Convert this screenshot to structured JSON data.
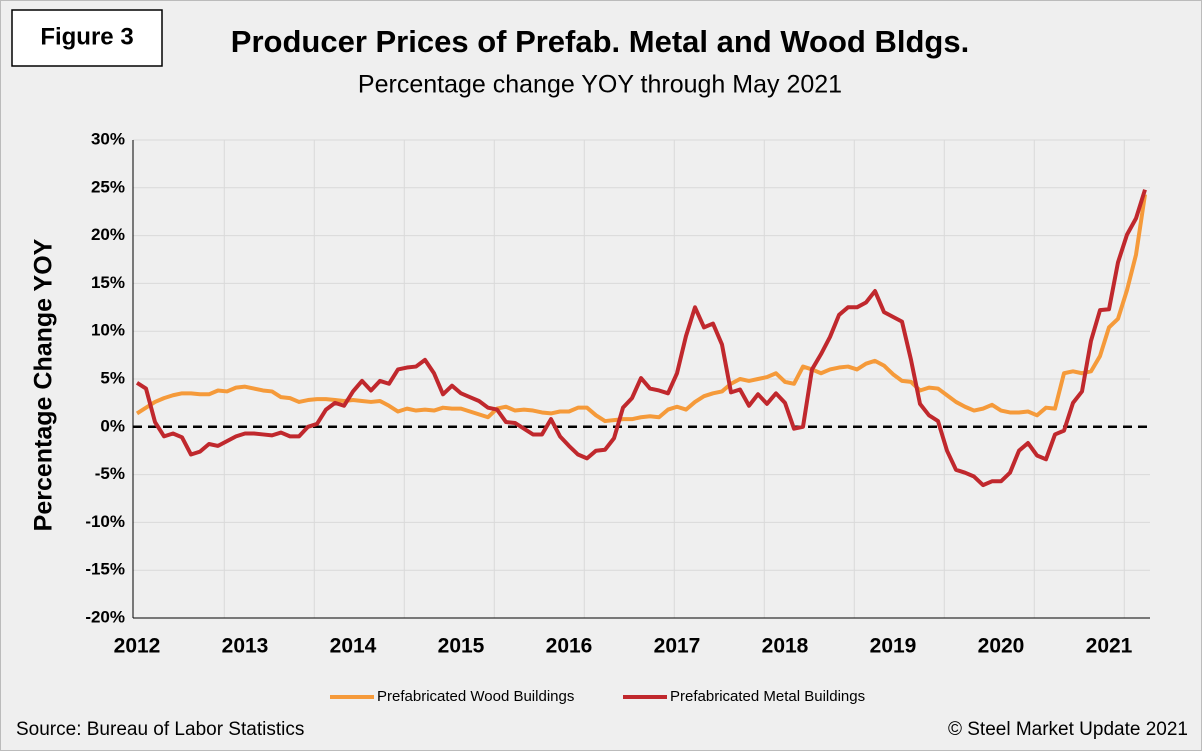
{
  "chart_data": {
    "type": "line",
    "figure_label": "Figure 3",
    "title": "Producer Prices of Prefab. Metal and Wood Bldgs.",
    "subtitle": "Percentage change YOY through May 2021",
    "ylabel": "Percentage Change YOY",
    "source": "Source: Bureau of Labor Statistics",
    "credit": "© Steel Market Update 2021",
    "categories": [
      "2012",
      null,
      null,
      null,
      null,
      null,
      null,
      null,
      null,
      null,
      null,
      null,
      "2013",
      null,
      null,
      null,
      null,
      null,
      null,
      null,
      null,
      null,
      null,
      null,
      "2014",
      null,
      null,
      null,
      null,
      null,
      null,
      null,
      null,
      null,
      null,
      null,
      "2015",
      null,
      null,
      null,
      null,
      null,
      null,
      null,
      null,
      null,
      null,
      null,
      "2016",
      null,
      null,
      null,
      null,
      null,
      null,
      null,
      null,
      null,
      null,
      null,
      "2017",
      null,
      null,
      null,
      null,
      null,
      null,
      null,
      null,
      null,
      null,
      null,
      "2018",
      null,
      null,
      null,
      null,
      null,
      null,
      null,
      null,
      null,
      null,
      null,
      "2019",
      null,
      null,
      null,
      null,
      null,
      null,
      null,
      null,
      null,
      null,
      null,
      "2020",
      null,
      null,
      null,
      null,
      null,
      null,
      null,
      null,
      null,
      null,
      null,
      "2021",
      null,
      null,
      null,
      null
    ],
    "series": [
      {
        "name": "Prefabricated Wood Buildings",
        "color": "#f59a3a",
        "values": [
          1.4,
          2.0,
          2.6,
          3.0,
          3.3,
          3.5,
          3.5,
          3.4,
          3.4,
          3.8,
          3.7,
          4.1,
          4.2,
          4.0,
          3.8,
          3.7,
          3.1,
          3.0,
          2.6,
          2.8,
          2.9,
          2.9,
          2.8,
          2.7,
          2.8,
          2.7,
          2.6,
          2.7,
          2.2,
          1.6,
          1.9,
          1.7,
          1.8,
          1.7,
          2.0,
          1.9,
          1.9,
          1.6,
          1.3,
          1.0,
          1.9,
          2.1,
          1.7,
          1.8,
          1.7,
          1.5,
          1.4,
          1.6,
          1.6,
          2.0,
          2.0,
          1.2,
          0.6,
          0.7,
          0.8,
          0.8,
          1.0,
          1.1,
          1.0,
          1.8,
          2.1,
          1.8,
          2.6,
          3.2,
          3.5,
          3.7,
          4.5,
          5.0,
          4.8,
          5.0,
          5.2,
          5.6,
          4.7,
          4.5,
          6.3,
          6.0,
          5.6,
          6.0,
          6.2,
          6.3,
          6.0,
          6.6,
          6.9,
          6.4,
          5.5,
          4.8,
          4.7,
          3.8,
          4.1,
          4.0,
          3.3,
          2.6,
          2.1,
          1.7,
          1.9,
          2.3,
          1.7,
          1.5,
          1.5,
          1.6,
          1.2,
          2.0,
          1.9,
          5.6,
          5.8,
          5.6,
          5.8,
          7.4,
          10.4,
          11.3,
          14.3,
          18.0,
          24.3
        ]
      },
      {
        "name": "Prefabricated Metal Buildings",
        "color": "#c0282d",
        "values": [
          4.6,
          4.0,
          0.5,
          -1.0,
          -0.7,
          -1.1,
          -2.9,
          -2.6,
          -1.8,
          -2.0,
          -1.5,
          -1.0,
          -0.7,
          -0.7,
          -0.8,
          -0.9,
          -0.6,
          -1.0,
          -1.0,
          0.0,
          0.3,
          1.8,
          2.5,
          2.2,
          3.7,
          4.8,
          3.8,
          4.8,
          4.5,
          6.0,
          6.2,
          6.3,
          7.0,
          5.6,
          3.4,
          4.3,
          3.5,
          3.1,
          2.7,
          2.0,
          1.8,
          0.5,
          0.4,
          -0.2,
          -0.8,
          -0.8,
          0.8,
          -1.0,
          -2.0,
          -2.9,
          -3.3,
          -2.5,
          -2.4,
          -1.2,
          2.0,
          3.0,
          5.1,
          4.0,
          3.8,
          3.5,
          5.6,
          9.5,
          12.5,
          10.4,
          10.8,
          8.6,
          3.6,
          3.9,
          2.2,
          3.4,
          2.4,
          3.5,
          2.5,
          -0.2,
          0.0,
          6.0,
          7.6,
          9.4,
          11.7,
          12.5,
          12.5,
          13.0,
          14.2,
          12.0,
          11.5,
          11.0,
          7.0,
          2.4,
          1.2,
          0.6,
          -2.5,
          -4.5,
          -4.8,
          -5.2,
          -6.1,
          -5.7,
          -5.7,
          -4.8,
          -2.5,
          -1.7,
          -3.0,
          -3.4,
          -0.8,
          -0.4,
          2.5,
          3.7,
          9.0,
          12.2,
          12.3,
          17.2,
          20.1,
          21.8,
          24.8
        ]
      }
    ],
    "ylim": [
      -20,
      30
    ],
    "yticks": [
      {
        "value": -20,
        "label": "-20%"
      },
      {
        "value": -15,
        "label": "-15%"
      },
      {
        "value": -10,
        "label": "-10%"
      },
      {
        "value": -5,
        "label": "-5%"
      },
      {
        "value": 0,
        "label": "0%"
      },
      {
        "value": 5,
        "label": "5%"
      },
      {
        "value": 10,
        "label": "10%"
      },
      {
        "value": 15,
        "label": "15%"
      },
      {
        "value": 20,
        "label": "20%"
      },
      {
        "value": 25,
        "label": "25%"
      },
      {
        "value": 30,
        "label": "30%"
      }
    ],
    "grid": true,
    "zero_line": "dashed",
    "legend": "bottom"
  }
}
